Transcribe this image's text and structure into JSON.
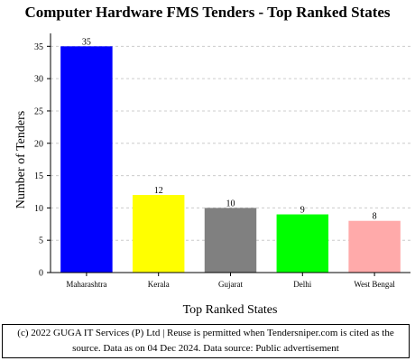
{
  "chart_data": {
    "type": "bar",
    "title": "Computer Hardware FMS Tenders - Top Ranked States",
    "xlabel": "Top Ranked States",
    "ylabel": "Number of Tenders",
    "categories": [
      "Maharashtra",
      "Kerala",
      "Gujarat",
      "Delhi",
      "West Bengal"
    ],
    "values": [
      35,
      12,
      10,
      9,
      8
    ],
    "colors": [
      "#0000ff",
      "#ffff00",
      "#808080",
      "#00ff00",
      "#ffaaaa"
    ],
    "ylim": [
      0,
      37
    ],
    "yticks": [
      0,
      5,
      10,
      15,
      20,
      25,
      30,
      35
    ],
    "grid": true,
    "legend": "none"
  },
  "footer": {
    "text": "(c) 2022 GUGA IT Services (P) Ltd | Reuse is permitted when Tendersniper.com is cited as the source. Data as on 04 Dec 2024. Data source: Public advertisement"
  }
}
